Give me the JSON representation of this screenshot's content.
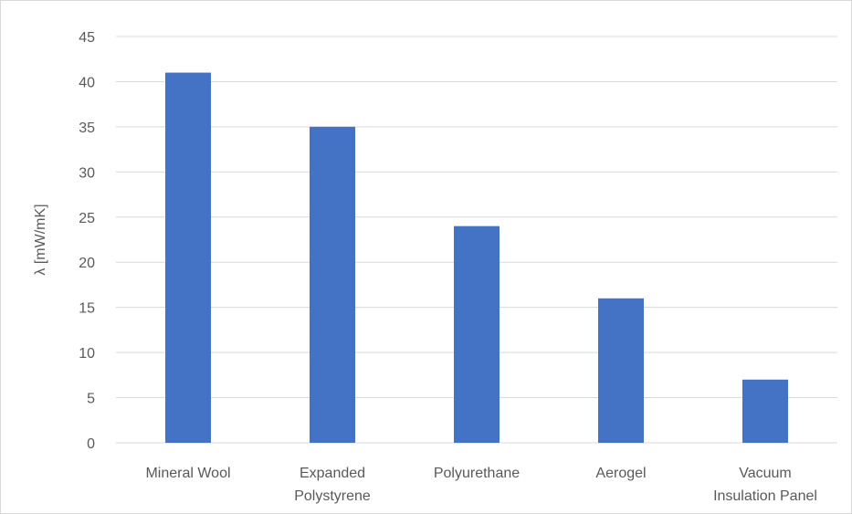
{
  "chart_data": {
    "type": "bar",
    "title": "",
    "xlabel": "",
    "ylabel": "λ [mW/mK]",
    "categories": [
      [
        "Mineral Wool"
      ],
      [
        "Expanded",
        "Polystyrene"
      ],
      [
        "Polyurethane"
      ],
      [
        "Aerogel"
      ],
      [
        "Vacuum",
        "Insulation Panel"
      ]
    ],
    "values": [
      41,
      35,
      24,
      16,
      7
    ],
    "ylim": [
      0,
      45
    ],
    "yticks": [
      0,
      5,
      10,
      15,
      20,
      25,
      30,
      35,
      40,
      45
    ],
    "grid": true,
    "legend": "none",
    "colors": {
      "bar": "#4472c4",
      "grid": "#d9d9d9",
      "axis": "#d9d9d9",
      "text": "#595959"
    }
  }
}
